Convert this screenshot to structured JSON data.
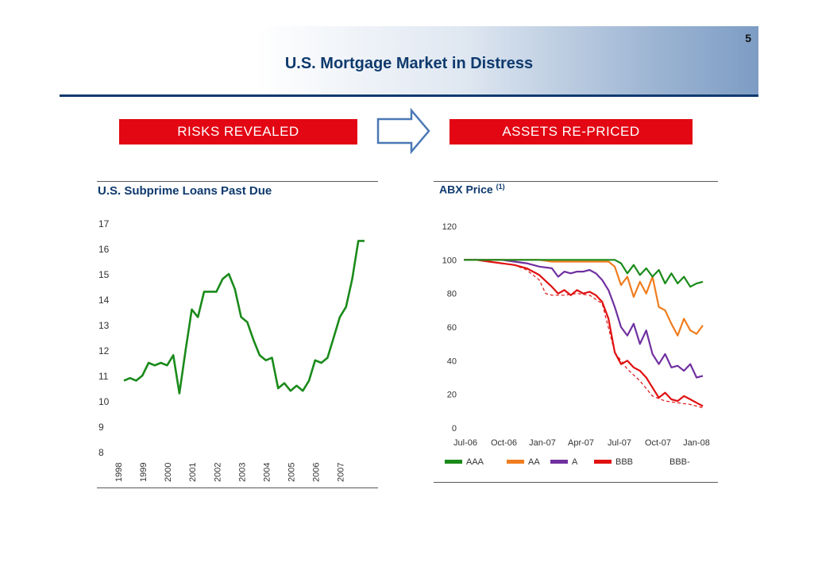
{
  "page": {
    "number": "5",
    "title": "U.S. Mortgage Market in Distress"
  },
  "banners": {
    "left": "RISKS REVEALED",
    "right": "ASSETS RE-PRICED"
  },
  "left_panel": {
    "title": "U.S. Subprime Loans Past Due"
  },
  "right_panel": {
    "title": "ABX Price",
    "footnote_marker": "(1)"
  },
  "colors": {
    "navy": "#0f3a6e",
    "banner_red": "#e30613",
    "arrow_blue": "#4a78b5",
    "aaa": "#1a8a1a",
    "aa": "#f07d1e",
    "a": "#7030a0",
    "bbb": "#e01010"
  },
  "chart_data": [
    {
      "type": "line",
      "title": "U.S. Subprime Loans Past Due",
      "xlabel": "",
      "ylabel": "",
      "x_ticks": [
        "1998",
        "1999",
        "2000",
        "2001",
        "2002",
        "2003",
        "2004",
        "2005",
        "2006",
        "2007"
      ],
      "y_ticks": [
        "8",
        "9",
        "10",
        "11",
        "12",
        "13",
        "14",
        "15",
        "16",
        "17"
      ],
      "ylim": [
        8,
        17
      ],
      "xlim": [
        1998,
        2007.75
      ],
      "series": [
        {
          "name": "Subprime loans past due",
          "x": [
            1998,
            1998.25,
            1998.5,
            1998.75,
            1999,
            1999.25,
            1999.5,
            1999.75,
            2000,
            2000.25,
            2000.5,
            2000.75,
            2001,
            2001.25,
            2001.5,
            2001.75,
            2002,
            2002.25,
            2002.5,
            2002.75,
            2003,
            2003.25,
            2003.5,
            2003.75,
            2004,
            2004.25,
            2004.5,
            2004.75,
            2005,
            2005.25,
            2005.5,
            2005.75,
            2006,
            2006.25,
            2006.5,
            2006.75,
            2007,
            2007.25,
            2007.5,
            2007.75
          ],
          "values": [
            10.8,
            10.9,
            10.8,
            11.0,
            11.5,
            11.4,
            11.5,
            11.4,
            11.8,
            10.3,
            12.0,
            13.6,
            13.3,
            14.3,
            14.3,
            14.3,
            14.8,
            15.0,
            14.4,
            13.3,
            13.1,
            12.4,
            11.8,
            11.6,
            11.7,
            10.5,
            10.7,
            10.4,
            10.6,
            10.4,
            10.8,
            11.6,
            11.5,
            11.7,
            12.5,
            13.3,
            13.7,
            14.8,
            16.3,
            16.3
          ]
        }
      ]
    },
    {
      "type": "line",
      "title": "ABX Price",
      "xlabel": "",
      "ylabel": "",
      "x_ticks": [
        "Jul-06",
        "Oct-06",
        "Jan-07",
        "Apr-07",
        "Jul-07",
        "Oct-07",
        "Jan-08"
      ],
      "y_ticks": [
        "0",
        "20",
        "40",
        "60",
        "80",
        "100",
        "120"
      ],
      "ylim": [
        0,
        120
      ],
      "xlim": [
        0,
        19
      ],
      "legend": [
        "AAA",
        "AA",
        "A",
        "BBB",
        "BBB-"
      ],
      "series": [
        {
          "name": "AAA",
          "x": [
            0,
            1,
            2,
            3,
            4,
            5,
            6,
            7,
            8,
            9,
            10,
            11,
            12,
            12.5,
            13,
            13.5,
            14,
            14.5,
            15,
            15.5,
            16,
            16.5,
            17,
            17.5,
            18,
            18.5,
            19
          ],
          "values": [
            100,
            100,
            100,
            100,
            100,
            100,
            100,
            100,
            100,
            100,
            100,
            100,
            100,
            98,
            92,
            97,
            91,
            95,
            90,
            94,
            86,
            92,
            86,
            90,
            84,
            86,
            87
          ]
        },
        {
          "name": "AA",
          "x": [
            0,
            1,
            2,
            3,
            4,
            5,
            6,
            7,
            8,
            9,
            10,
            10.5,
            11,
            11.5,
            12,
            12.5,
            13,
            13.5,
            14,
            14.5,
            15,
            15.5,
            16,
            16.5,
            17,
            17.5,
            18,
            18.5,
            19
          ],
          "values": [
            100,
            100,
            100,
            100,
            100,
            100,
            100,
            99,
            99,
            99,
            99,
            99,
            99,
            99,
            96,
            85,
            90,
            78,
            87,
            80,
            90,
            72,
            70,
            62,
            55,
            65,
            58,
            56,
            61
          ]
        },
        {
          "name": "A",
          "x": [
            0,
            1,
            2,
            3,
            4,
            5,
            6,
            7,
            7.5,
            8,
            8.5,
            9,
            9.5,
            10,
            10.5,
            11,
            11.5,
            12,
            12.5,
            13,
            13.5,
            14,
            14.5,
            15,
            15.5,
            16,
            16.5,
            17,
            17.5,
            18,
            18.5,
            19
          ],
          "values": [
            100,
            100,
            100,
            100,
            99,
            98,
            96,
            95,
            90,
            93,
            92,
            93,
            93,
            94,
            92,
            88,
            82,
            72,
            60,
            55,
            62,
            50,
            58,
            44,
            38,
            44,
            36,
            37,
            34,
            38,
            30,
            31
          ]
        },
        {
          "name": "BBB",
          "x": [
            0,
            1,
            2,
            3,
            4,
            5,
            6,
            7,
            7.5,
            8,
            8.5,
            9,
            9.5,
            10,
            10.5,
            11,
            11.5,
            12,
            12.5,
            13,
            13.5,
            14,
            14.5,
            15,
            15.5,
            16,
            16.5,
            17,
            17.5,
            18,
            18.5,
            19
          ],
          "values": [
            100,
            100,
            99,
            98,
            97,
            95,
            91,
            84,
            80,
            82,
            79,
            82,
            80,
            81,
            79,
            75,
            65,
            45,
            38,
            40,
            36,
            34,
            30,
            24,
            18,
            21,
            17,
            16,
            19,
            17,
            15,
            13
          ]
        },
        {
          "name": "BBB-",
          "x": [
            0,
            1,
            2,
            3,
            4,
            5,
            6,
            6.5,
            7,
            8,
            9,
            10,
            11,
            12,
            13,
            14,
            15,
            16,
            17,
            18,
            19
          ],
          "values": [
            100,
            100,
            99,
            98,
            97,
            94,
            88,
            80,
            79,
            79,
            80,
            79,
            74,
            45,
            35,
            28,
            19,
            16,
            15,
            14,
            12
          ]
        }
      ]
    }
  ]
}
